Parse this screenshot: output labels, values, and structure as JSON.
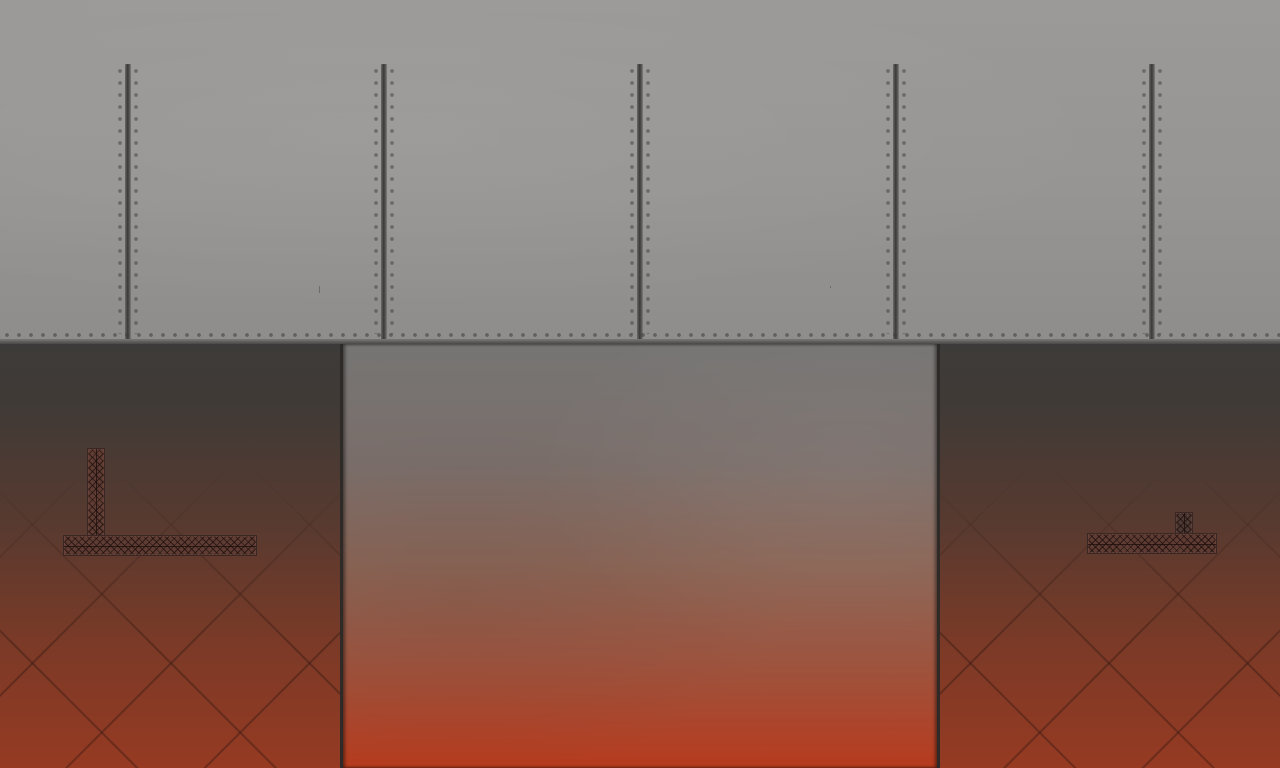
{
  "scene": {
    "palette": {
      "ceiling_steel": "#979593",
      "seam": "#3c3a38",
      "wall_top": "#3d3b39",
      "wall_bottom": "#963a22",
      "shaft_top": "#767574",
      "shaft_bottom": "#b63b1e",
      "girder": "#5e3c33"
    },
    "elements": [
      "riveted-steel-ceiling",
      "left-wall",
      "right-wall",
      "lava-glow-shaft",
      "left-t-girder-platform",
      "right-t-girder-platform"
    ]
  }
}
